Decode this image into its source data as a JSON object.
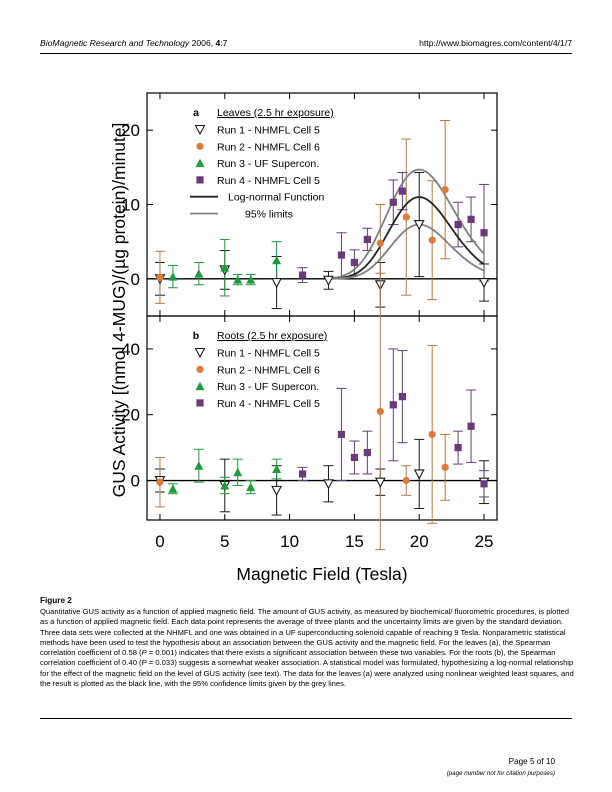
{
  "header": {
    "journal": "BioMagnetic Research and Technology",
    "year": " 2006, ",
    "volume": "4",
    "issue": ":7",
    "url": "http://www.biomagres.com/content/4/1/7"
  },
  "figure": {
    "label": "Figure 2",
    "caption_parts": [
      "Quantitative GUS activity as a function of applied magnetic field. The amount of GUS activity, as measured by biochemical/ fluorometric procedures, is plotted as a function of applied magnetic field. Each data point represents the average of three plants and the uncertainty limits are given by the standard deviation. Three data sets were collected at the NHMFL and one was obtained in a UF superconducting solenoid capable of reaching 9 Tesla. Nonparametric statistical methods have been used to test the hypothesis about an association between the GUS activity and the magnetic field. For the leaves (a), the Spearman correlation coefficient of 0.58 (",
      "P",
      " = 0.001) indicates that there exists a significant association between these two variables. For the roots (b), the Spearman correlation coefficient of 0.40 (",
      "P",
      " = 0.033) suggests a somewhat weaker association. A statistical model was formulated, hypothesizing a log-normal relationship for the effect of the magnetic field on the level of GUS activity (see text). The data for the leaves (a) were analyzed using nonlinear weighted least squares, and the result is plotted as the black line, with the 95% confidence limits given by the grey lines."
    ]
  },
  "footer": {
    "page": "Page 5 of 10",
    "note": "(page number not for citation purposes)"
  },
  "colors": {
    "run1": "#1a1a1a",
    "run2": "#e07a3a",
    "run3": "#1f9a3c",
    "run4": "#6b3a7a",
    "run2_bar": "#b97a3c",
    "fit": "#222222",
    "limits": "#808080"
  },
  "chart_data": [
    {
      "type": "scatter",
      "panel": "a",
      "title": "Leaves (2.5 hr exposure)",
      "xlabel": "Magnetic Field (Tesla)",
      "ylabel": "GUS Activity [(nmol 4-MUG)/(µg protein)/minute]",
      "xlim": [
        -1,
        26
      ],
      "ylim": [
        -5,
        25
      ],
      "yticks": [
        0,
        10,
        20
      ],
      "xticks": [
        0,
        5,
        10,
        15,
        20,
        25
      ],
      "legend_position": "top-left",
      "series": [
        {
          "name": "Run 1 - NHMFL Cell 5",
          "marker": "triangle-down-open",
          "color": "#1a1a1a",
          "points": [
            {
              "x": 0,
              "y": 0,
              "err": 2.2
            },
            {
              "x": 5,
              "y": 1.2,
              "err": 2.6
            },
            {
              "x": 9,
              "y": -0.5,
              "err": 3.5
            },
            {
              "x": 13,
              "y": -0.2,
              "err": 1.2
            },
            {
              "x": 17,
              "y": -0.8,
              "err": 3.0
            },
            {
              "x": 20,
              "y": 7.3,
              "err": 7.0
            },
            {
              "x": 25,
              "y": -0.5,
              "err": 2.5
            }
          ]
        },
        {
          "name": "Run 2 - NHMFL Cell 6",
          "marker": "circle",
          "color": "#e07a3a",
          "points": [
            {
              "x": 0,
              "y": 0.2,
              "err": 3.5
            },
            {
              "x": 17,
              "y": 4.8,
              "err": 5.2
            },
            {
              "x": 19,
              "y": 8.3,
              "err": 10.5
            },
            {
              "x": 21,
              "y": 5.2,
              "err": 8.0
            },
            {
              "x": 22,
              "y": 12.0,
              "err": 9.3
            }
          ]
        },
        {
          "name": "Run 3 - UF Supercon.",
          "marker": "triangle-up",
          "color": "#1f9a3c",
          "points": [
            {
              "x": 1,
              "y": 0.3,
              "err": 1.5
            },
            {
              "x": 3,
              "y": 0.7,
              "err": 1.5
            },
            {
              "x": 5,
              "y": 1.5,
              "err": 3.8
            },
            {
              "x": 6,
              "y": -0.1,
              "err": 0.7
            },
            {
              "x": 7,
              "y": -0.1,
              "err": 0.7
            },
            {
              "x": 9,
              "y": 2.5,
              "err": 2.5
            }
          ]
        },
        {
          "name": "Run 4 - NHMFL Cell 5",
          "marker": "square",
          "color": "#6b3a7a",
          "points": [
            {
              "x": 11,
              "y": 0.5,
              "err": 1.0
            },
            {
              "x": 14,
              "y": 3.2,
              "err": 3.0
            },
            {
              "x": 15,
              "y": 2.2,
              "err": 1.7
            },
            {
              "x": 16,
              "y": 5.3,
              "err": 1.5
            },
            {
              "x": 18,
              "y": 10.3,
              "err": 3.0
            },
            {
              "x": 18.7,
              "y": 11.8,
              "err": 2.5
            },
            {
              "x": 23,
              "y": 7.3,
              "err": 3.0
            },
            {
              "x": 24,
              "y": 8.0,
              "err": 3.0
            },
            {
              "x": 25,
              "y": 6.2,
              "err": 6.5
            }
          ]
        },
        {
          "name": "Log-normal Function",
          "marker": "line",
          "color": "#222222",
          "model": "lognormal",
          "peak_x": 20,
          "amplitude": 11.0,
          "sigma": 0.12,
          "sample_x": [
            13,
            15,
            17,
            18,
            19,
            20,
            21,
            22,
            23,
            24,
            25
          ]
        },
        {
          "name": "95% limits",
          "marker": "line",
          "color": "#808080",
          "model": "lognormal",
          "bands": [
            {
              "peak_x": 20,
              "amplitude": 14.7,
              "sigma": 0.13
            },
            {
              "peak_x": 20,
              "amplitude": 7.3,
              "sigma": 0.115
            }
          ]
        }
      ]
    },
    {
      "type": "scatter",
      "panel": "b",
      "title": "Roots (2.5 hr exposure)",
      "xlabel": "Magnetic Field (Tesla)",
      "ylabel": "GUS Activity [(nmol 4-MUG)/(µg protein)/minute]",
      "xlim": [
        -1,
        26
      ],
      "ylim": [
        -12,
        50
      ],
      "yticks": [
        0,
        20,
        40
      ],
      "xticks": [
        0,
        5,
        10,
        15,
        20,
        25
      ],
      "xticklabels": [
        "0",
        "5",
        "10",
        "15",
        "20",
        "25"
      ],
      "legend_position": "top-left",
      "series": [
        {
          "name": "Run 1 - NHMFL Cell 5",
          "marker": "triangle-down-open",
          "color": "#1a1a1a",
          "points": [
            {
              "x": 0,
              "y": 0,
              "err": 3.5
            },
            {
              "x": 5,
              "y": -1.5,
              "err": 8.0
            },
            {
              "x": 9,
              "y": -3.0,
              "err": 7.5
            },
            {
              "x": 13,
              "y": -1.0,
              "err": 5.5
            },
            {
              "x": 17,
              "y": -0.5,
              "err": 4.0
            },
            {
              "x": 20,
              "y": 2.0,
              "err": 10.5
            },
            {
              "x": 25,
              "y": -0.5,
              "err": 6.5
            }
          ]
        },
        {
          "name": "Run 2 - NHMFL Cell 6",
          "marker": "circle",
          "color": "#e07a3a",
          "points": [
            {
              "x": 0,
              "y": -0.5,
              "err": 7.5
            },
            {
              "x": 17,
              "y": 21.0,
              "err": 42.0
            },
            {
              "x": 19,
              "y": 0.0,
              "err": 4.5
            },
            {
              "x": 21,
              "y": 14.0,
              "err": 27.0
            },
            {
              "x": 22,
              "y": 4.0,
              "err": 10.0
            }
          ]
        },
        {
          "name": "Run 3 - UF Supercon.",
          "marker": "triangle-up",
          "color": "#1f9a3c",
          "points": [
            {
              "x": 1,
              "y": -2.5,
              "err": 1.5
            },
            {
              "x": 3,
              "y": 4.5,
              "err": 5.0
            },
            {
              "x": 5,
              "y": -1.5,
              "err": 2.5
            },
            {
              "x": 6,
              "y": 2.5,
              "err": 4.0
            },
            {
              "x": 7,
              "y": -2.0,
              "err": 2.0
            },
            {
              "x": 9,
              "y": 3.5,
              "err": 3.0
            }
          ]
        },
        {
          "name": "Run 4 - NHMFL Cell 5",
          "marker": "square",
          "color": "#6b3a7a",
          "points": [
            {
              "x": 11,
              "y": 2.0,
              "err": 2.0
            },
            {
              "x": 14,
              "y": 14.0,
              "err": 14.0
            },
            {
              "x": 15,
              "y": 7.0,
              "err": 5.0
            },
            {
              "x": 16,
              "y": 8.5,
              "err": 6.5
            },
            {
              "x": 18,
              "y": 23.0,
              "err": 17.0
            },
            {
              "x": 18.7,
              "y": 25.5,
              "err": 14.0
            },
            {
              "x": 23,
              "y": 10.0,
              "err": 5.0
            },
            {
              "x": 24,
              "y": 16.5,
              "err": 11.0
            },
            {
              "x": 25,
              "y": -1.0,
              "err": 4.0
            }
          ]
        }
      ]
    }
  ]
}
